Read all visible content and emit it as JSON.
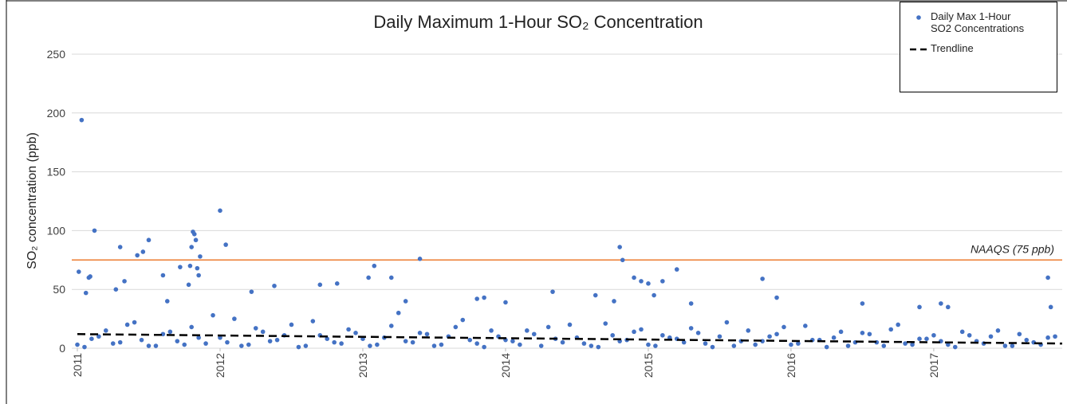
{
  "chart_data": {
    "type": "scatter",
    "title": "Daily Maximum 1-Hour SO₂ Concentration",
    "y_label": "SO₂ concentration (ppb)",
    "xlim": [
      2011,
      2017.9
    ],
    "xticks": [
      2011,
      2012,
      2013,
      2014,
      2015,
      2016,
      2017
    ],
    "ylim": [
      0,
      250
    ],
    "yticks": [
      0,
      50,
      100,
      150,
      200,
      250
    ],
    "grid": true,
    "legend": "upper right",
    "hlines": [
      {
        "value": 75,
        "label": "NAAQS (75 ppb)",
        "color": "#ed7d31"
      }
    ],
    "series": [
      {
        "name": "Daily Max 1-Hour SO2 Concentrations",
        "type": "scatter",
        "color": "#4472c4",
        "x": [
          2011,
          2011.1,
          2011.2,
          2011.3,
          2011.4,
          2011.5,
          2011.6,
          2011.7,
          2011.8,
          2011.9,
          2012,
          2012.1,
          2012.2,
          2012.3,
          2012.4,
          2012.5,
          2012.6,
          2012.7,
          2012.8,
          2012.9,
          2013,
          2013.1,
          2013.2,
          2013.3,
          2013.4,
          2013.5,
          2013.6,
          2013.7,
          2013.8,
          2013.9,
          2014,
          2014.1,
          2014.2,
          2014.3,
          2014.4,
          2014.5,
          2014.6,
          2014.7,
          2014.8,
          2014.9,
          2015,
          2015.1,
          2015.2,
          2015.3,
          2015.4,
          2015.5,
          2015.6,
          2015.7,
          2015.8,
          2015.9,
          2016,
          2016.1,
          2016.2,
          2016.3,
          2016.4,
          2016.5,
          2016.6,
          2016.7,
          2016.8,
          2016.9,
          2017,
          2017.1,
          2017.2,
          2017.3,
          2017.4,
          2017.5,
          2017.6,
          2017.7,
          2017.8,
          2011.05,
          2011.15,
          2011.25,
          2011.35,
          2011.45,
          2011.55,
          2011.65,
          2011.75,
          2011.85,
          2011.95,
          2012.05,
          2012.15,
          2012.25,
          2012.35,
          2012.45,
          2012.55,
          2012.65,
          2012.75,
          2012.85,
          2012.95,
          2013.05,
          2013.15,
          2013.25,
          2013.35,
          2013.45,
          2013.55,
          2013.65,
          2013.75,
          2013.85,
          2013.95,
          2014.05,
          2014.15,
          2014.25,
          2014.35,
          2014.45,
          2014.55,
          2014.65,
          2014.75,
          2014.85,
          2014.95,
          2015.05,
          2015.15,
          2015.25,
          2015.35,
          2015.45,
          2015.55,
          2015.65,
          2015.75,
          2015.85,
          2015.95,
          2016.05,
          2016.15,
          2016.25,
          2016.35,
          2016.45,
          2016.55,
          2016.65,
          2016.75,
          2016.85,
          2016.95,
          2017.05,
          2017.15,
          2017.25,
          2017.35,
          2017.45,
          2017.55,
          2017.65,
          2017.75,
          2017.85,
          2011.03,
          2011.12,
          2011.01,
          2011.06,
          2011.08,
          2011.09,
          2011.3,
          2011.27,
          2011.33,
          2011.42,
          2011.46,
          2011.5,
          2011.6,
          2011.78,
          2011.63,
          2011.72,
          2011.81,
          2011.82,
          2011.83,
          2011.8,
          2011.86,
          2011.84,
          2011.79,
          2011.85,
          2012,
          2012.04,
          2012.22,
          2012.38,
          2012.7,
          2012.82,
          2013.04,
          2013.08,
          2013.2,
          2013.4,
          2013.3,
          2013.8,
          2013.85,
          2014,
          2014.33,
          2014.63,
          2014.8,
          2014.82,
          2014.76,
          2014.9,
          2014.95,
          2015,
          2015.1,
          2015.2,
          2015.04,
          2015.3,
          2015.8,
          2015.9,
          2016.5,
          2016.9,
          2017.05,
          2017.1,
          2017.8,
          2017.82
        ],
        "values": [
          3,
          8,
          15,
          5,
          22,
          2,
          12,
          6,
          18,
          4,
          9,
          25,
          3,
          14,
          7,
          20,
          2,
          11,
          5,
          16,
          8,
          3,
          19,
          6,
          13,
          2,
          10,
          24,
          4,
          15,
          7,
          3,
          12,
          18,
          5,
          9,
          2,
          21,
          6,
          14,
          3,
          11,
          8,
          17,
          4,
          10,
          2,
          15,
          6,
          12,
          3,
          19,
          7,
          9,
          2,
          13,
          5,
          16,
          4,
          8,
          11,
          3,
          14,
          6,
          10,
          2,
          12,
          5,
          9,
          1,
          10,
          4,
          20,
          7,
          2,
          14,
          3,
          9,
          28,
          5,
          2,
          17,
          6,
          11,
          1,
          23,
          8,
          4,
          13,
          2,
          9,
          30,
          5,
          12,
          3,
          18,
          7,
          1,
          10,
          6,
          15,
          2,
          8,
          20,
          4,
          1,
          11,
          7,
          16,
          2,
          9,
          5,
          13,
          1,
          22,
          6,
          3,
          10,
          18,
          4,
          7,
          1,
          14,
          5,
          12,
          2,
          20,
          3,
          8,
          6,
          1,
          11,
          4,
          15,
          2,
          7,
          3,
          10,
          194,
          100,
          65,
          47,
          60,
          61,
          86,
          50,
          57,
          79,
          82,
          92,
          62,
          54,
          40,
          69,
          99,
          97,
          92,
          86,
          78,
          68,
          70,
          62,
          117,
          88,
          48,
          53,
          54,
          55,
          60,
          70,
          60,
          76,
          40,
          42,
          43,
          39,
          48,
          45,
          86,
          75,
          40,
          60,
          57,
          55,
          57,
          67,
          45,
          38,
          59,
          43,
          38,
          35,
          38,
          35,
          60,
          35
        ]
      },
      {
        "name": "Trendline",
        "type": "line",
        "dash": true,
        "color": "#000000",
        "x": [
          2011,
          2017.9
        ],
        "values": [
          12,
          4
        ]
      }
    ]
  }
}
